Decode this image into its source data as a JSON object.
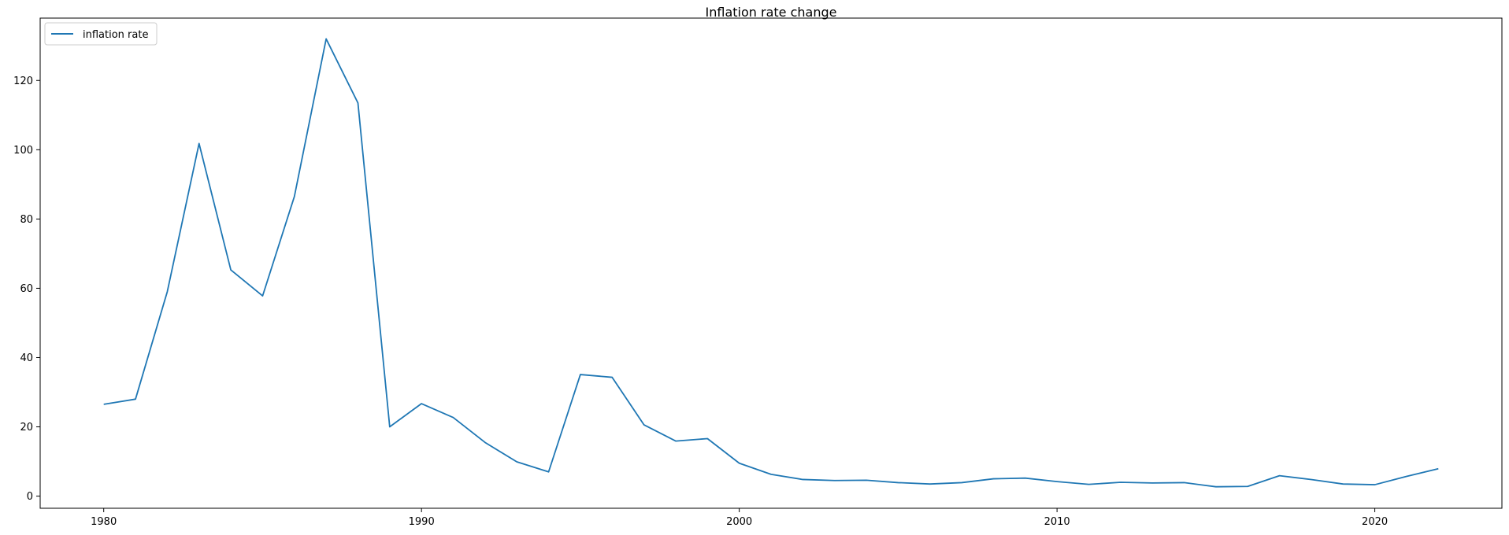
{
  "chart_data": {
    "type": "line",
    "title": "Inflation rate change",
    "xlabel": "",
    "ylabel": "",
    "xlim": [
      1978,
      2024
    ],
    "ylim": [
      -3.5,
      138
    ],
    "xticks": [
      1980,
      1990,
      2000,
      2010,
      2020
    ],
    "yticks": [
      0,
      20,
      40,
      60,
      80,
      100,
      120
    ],
    "grid": false,
    "legend_position": "upper left",
    "series": [
      {
        "name": "inflation rate",
        "color": "#1f77b4",
        "x": [
          1980,
          1981,
          1982,
          1983,
          1984,
          1985,
          1986,
          1987,
          1988,
          1989,
          1990,
          1991,
          1992,
          1993,
          1994,
          1995,
          1996,
          1997,
          1998,
          1999,
          2000,
          2001,
          2002,
          2003,
          2004,
          2005,
          2006,
          2007,
          2008,
          2009,
          2010,
          2011,
          2012,
          2013,
          2014,
          2015,
          2016,
          2017,
          2018,
          2019,
          2020,
          2021,
          2022
        ],
        "values": [
          26.5,
          28.0,
          59.0,
          101.8,
          65.3,
          57.8,
          86.5,
          132.0,
          113.5,
          20.0,
          26.7,
          22.7,
          15.5,
          9.9,
          7.0,
          35.1,
          34.3,
          20.6,
          15.9,
          16.6,
          9.5,
          6.3,
          4.8,
          4.5,
          4.6,
          3.9,
          3.5,
          3.9,
          5.0,
          5.2,
          4.2,
          3.4,
          4.0,
          3.8,
          3.9,
          2.7,
          2.8,
          5.9,
          4.8,
          3.5,
          3.3,
          5.7,
          7.9
        ]
      }
    ]
  }
}
